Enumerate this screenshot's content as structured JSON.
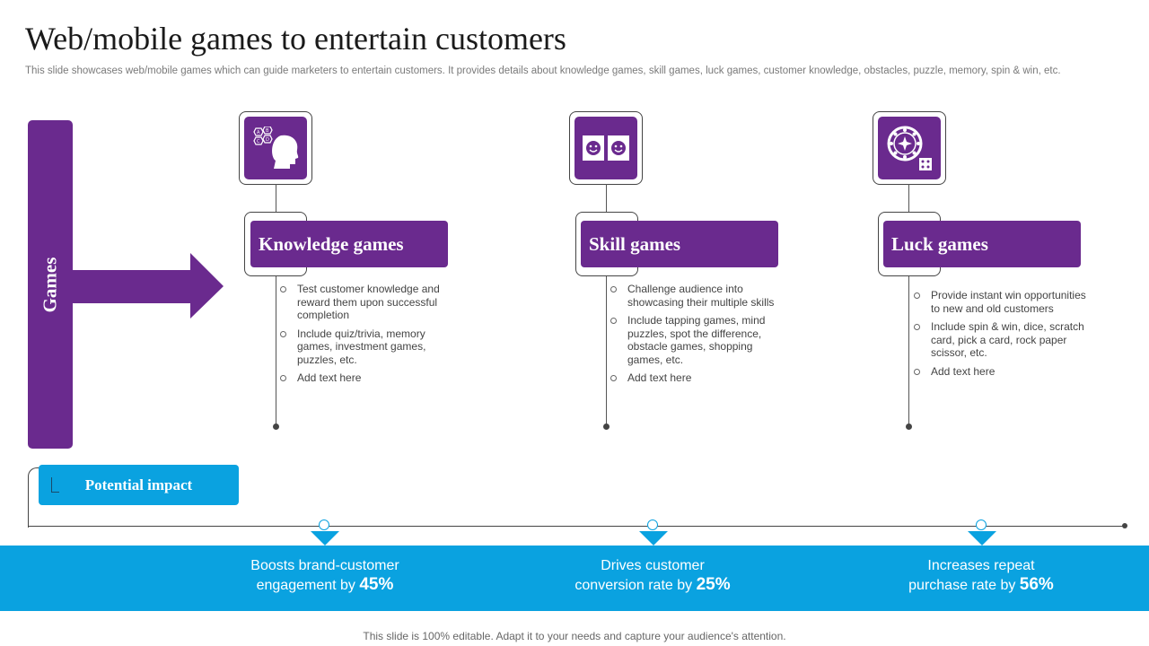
{
  "title": "Web/mobile  games to entertain customers",
  "subtitle": "This slide showcases web/mobile games which can guide marketers to entertain customers. It provides details about knowledge games, skill games, luck games, customer knowledge, obstacles, puzzle, memory, spin & win, etc.",
  "left_label": "Games",
  "colors": {
    "purple": "#6a2a8e",
    "blue": "#0aa2e0"
  },
  "columns": [
    {
      "icon": "brain-abcd-icon",
      "heading": "Knowledge games",
      "bullets": [
        "Test customer knowledge and reward them upon successful completion",
        "Include quiz/trivia, memory games, investment games, puzzles, etc.",
        "Add text here"
      ]
    },
    {
      "icon": "dice-faces-icon",
      "heading": "Skill games",
      "bullets": [
        "Challenge audience into showcasing their multiple skills",
        "Include tapping games, mind puzzles, spot the difference, obstacle games, shopping games, etc.",
        "Add text here"
      ]
    },
    {
      "icon": "roulette-wheel-icon",
      "heading": "Luck games",
      "bullets": [
        "Provide instant win opportunities to new and old customers",
        "Include spin & win, dice, scratch card, pick a card, rock paper scissor, etc.",
        "Add text here"
      ]
    }
  ],
  "impact_label": "Potential impact",
  "impacts": [
    {
      "line1": "Boosts brand-customer",
      "line2": "engagement by",
      "value": "45%"
    },
    {
      "line1": "Drives customer",
      "line2": "conversion rate by",
      "value": "25%"
    },
    {
      "line1": "Increases repeat",
      "line2": "purchase rate by",
      "value": "56%"
    }
  ],
  "footer": "This slide is 100% editable. Adapt it to your needs and capture your audience's attention."
}
